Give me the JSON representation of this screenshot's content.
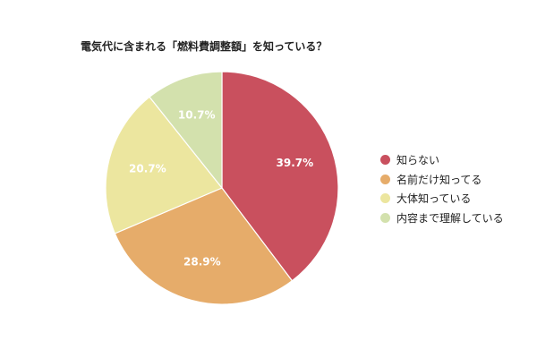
{
  "chart_data": {
    "type": "pie",
    "title": "電気代に含まれる「燃料費調整額」を知っている？",
    "categories": [
      "知らない",
      "名前だけ知ってる",
      "大体知っている",
      "内容まで理解している"
    ],
    "values": [
      39.7,
      28.9,
      20.7,
      10.7
    ],
    "data_labels": [
      "39.7%",
      "28.9%",
      "20.7%",
      "10.7%"
    ],
    "colors": [
      "#c9505e",
      "#e6ac6a",
      "#ece69f",
      "#d3e1ad"
    ],
    "legend_position": "right"
  }
}
